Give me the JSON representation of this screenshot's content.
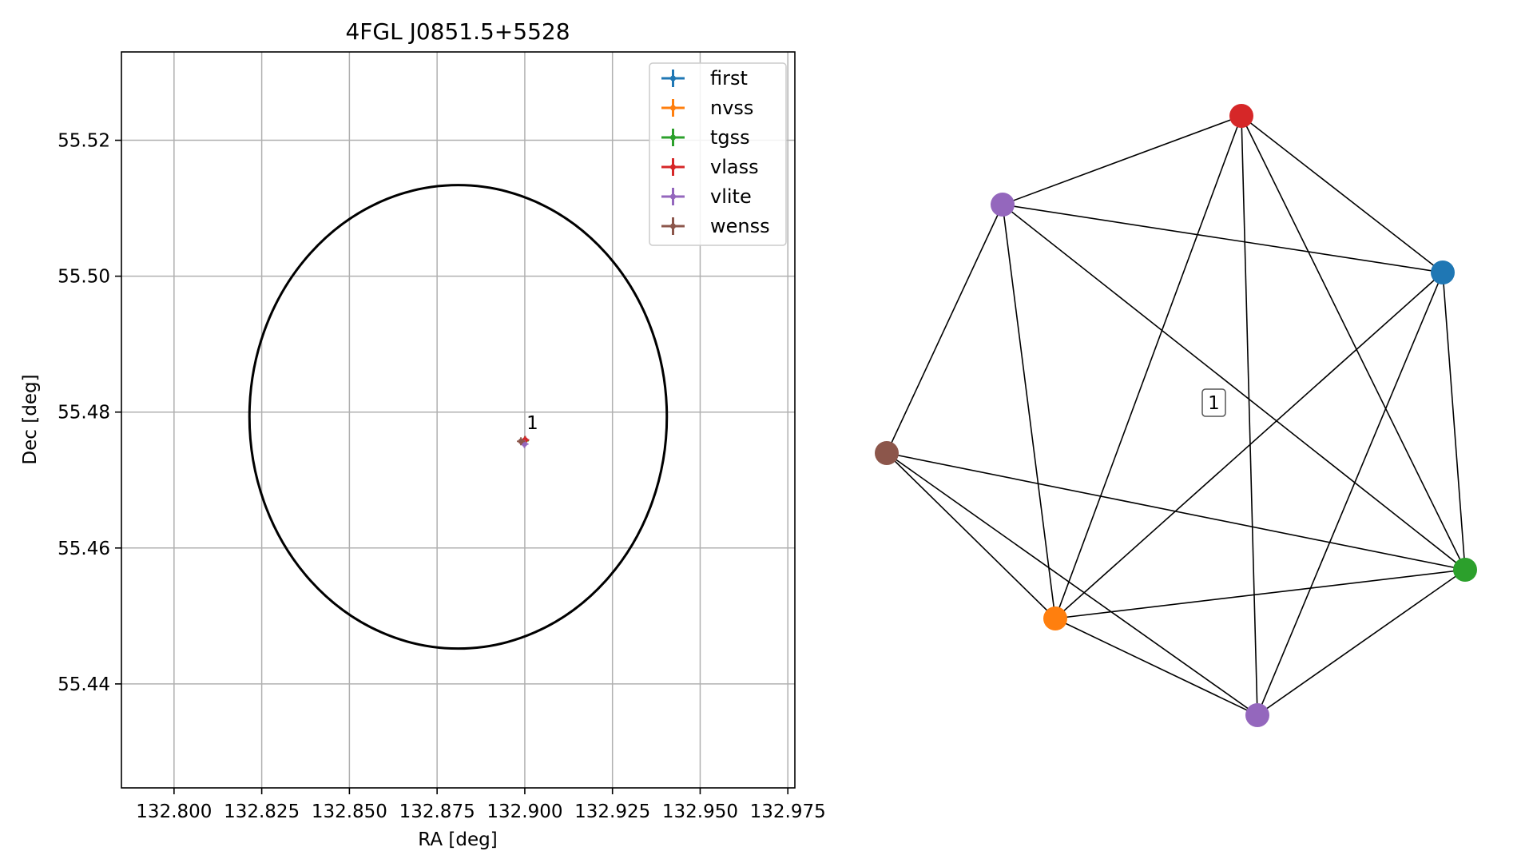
{
  "chart_data": [
    {
      "type": "scatter",
      "title": "4FGL J0851.5+5528",
      "xlabel": "RA [deg]",
      "ylabel": "Dec [deg]",
      "xlim": [
        132.785,
        132.977
      ],
      "ylim": [
        55.4247,
        55.533
      ],
      "xticks": [
        132.8,
        132.825,
        132.85,
        132.875,
        132.9,
        132.925,
        132.95,
        132.975
      ],
      "xtick_labels": [
        "132.800",
        "132.825",
        "132.850",
        "132.875",
        "132.900",
        "132.925",
        "132.950",
        "132.975"
      ],
      "yticks": [
        55.44,
        55.46,
        55.48,
        55.5,
        55.52
      ],
      "ytick_labels": [
        "55.44",
        "55.46",
        "55.48",
        "55.50",
        "55.52"
      ],
      "grid": true,
      "legend_position": "upper right",
      "series": [
        {
          "name": "first",
          "color": "#1f77b4",
          "x": [
            132.9001
          ],
          "y": [
            55.4759
          ]
        },
        {
          "name": "nvss",
          "color": "#ff7f0e",
          "x": [
            132.9
          ],
          "y": [
            55.4758
          ]
        },
        {
          "name": "tgss",
          "color": "#2ca02c",
          "x": [
            132.9
          ],
          "y": [
            55.4758
          ]
        },
        {
          "name": "vlass",
          "color": "#d62728",
          "x": [
            132.9001
          ],
          "y": [
            55.4759
          ]
        },
        {
          "name": "vlite",
          "color": "#9467bd",
          "x": [
            132.8999
          ],
          "y": [
            55.4753
          ]
        },
        {
          "name": "wenss",
          "color": "#8c564b",
          "x": [
            132.8989
          ],
          "y": [
            55.4757
          ]
        }
      ],
      "annotations": [
        {
          "text": "1",
          "x": 132.9005,
          "y": 55.4775
        }
      ],
      "ellipse": {
        "color": "#000000"
      }
    },
    {
      "type": "network",
      "cluster_label": "1",
      "nodes": [
        {
          "id": "vlass",
          "color": "#d62728"
        },
        {
          "id": "first",
          "color": "#1f77b4"
        },
        {
          "id": "tgss",
          "color": "#2ca02c"
        },
        {
          "id": "vlite_b",
          "color": "#9467bd"
        },
        {
          "id": "nvss",
          "color": "#ff7f0e"
        },
        {
          "id": "wenss",
          "color": "#8c564b"
        },
        {
          "id": "vlite_a",
          "color": "#9467bd"
        }
      ],
      "edges": [
        [
          "vlass",
          "first"
        ],
        [
          "vlass",
          "tgss"
        ],
        [
          "vlass",
          "vlite_b"
        ],
        [
          "vlass",
          "nvss"
        ],
        [
          "vlass",
          "vlite_a"
        ],
        [
          "first",
          "tgss"
        ],
        [
          "first",
          "vlite_b"
        ],
        [
          "first",
          "nvss"
        ],
        [
          "first",
          "vlite_a"
        ],
        [
          "tgss",
          "vlite_b"
        ],
        [
          "tgss",
          "nvss"
        ],
        [
          "tgss",
          "wenss"
        ],
        [
          "tgss",
          "vlite_a"
        ],
        [
          "vlite_b",
          "nvss"
        ],
        [
          "vlite_b",
          "wenss"
        ],
        [
          "nvss",
          "wenss"
        ],
        [
          "nvss",
          "vlite_a"
        ],
        [
          "wenss",
          "vlite_a"
        ]
      ]
    }
  ]
}
